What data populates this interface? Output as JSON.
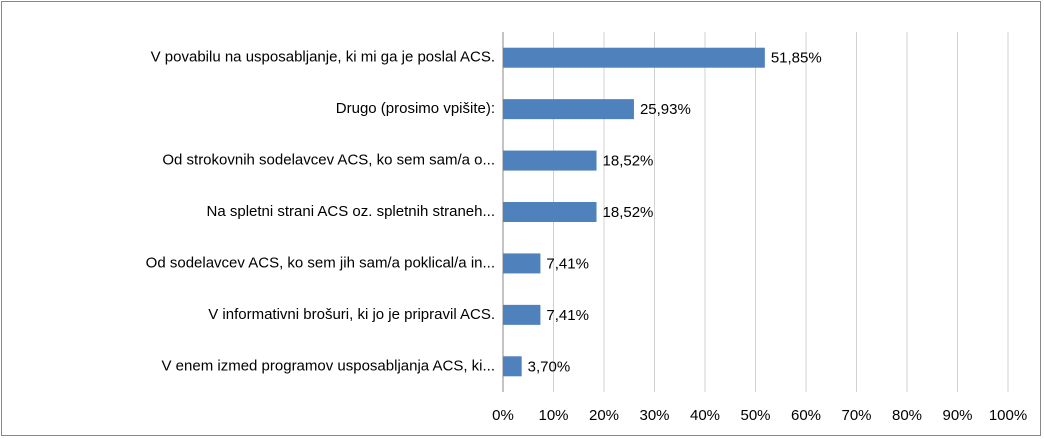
{
  "chart_data": {
    "type": "bar",
    "orientation": "horizontal",
    "categories": [
      "V povabilu na usposabljanje, ki mi ga je poslal ACS.",
      "Drugo (prosimo vpišite):",
      "Od strokovnih sodelavcev ACS, ko sem sam/a o...",
      "Na spletni strani ACS oz. spletnih straneh...",
      "Od sodelavcev ACS, ko sem jih sam/a poklical/a in...",
      "V informativni brošuri, ki jo je pripravil ACS.",
      "V enem izmed programov usposabljanja ACS, ki..."
    ],
    "values": [
      51.85,
      25.93,
      18.52,
      18.52,
      7.41,
      7.41,
      3.7
    ],
    "value_labels": [
      "51,85%",
      "25,93%",
      "18,52%",
      "18,52%",
      "7,41%",
      "7,41%",
      "3,70%"
    ],
    "color": "#4f81bd",
    "xlim": [
      0,
      100
    ],
    "xticks": [
      {
        "value": 0,
        "label": "0%"
      },
      {
        "value": 10,
        "label": "10%"
      },
      {
        "value": 20,
        "label": "20%"
      },
      {
        "value": 30,
        "label": "30%"
      },
      {
        "value": 40,
        "label": "40%"
      },
      {
        "value": 50,
        "label": "50%"
      },
      {
        "value": 60,
        "label": "60%"
      },
      {
        "value": 70,
        "label": "70%"
      },
      {
        "value": 80,
        "label": "80%"
      },
      {
        "value": 90,
        "label": "90%"
      },
      {
        "value": 100,
        "label": "100%"
      }
    ],
    "grid": true
  }
}
